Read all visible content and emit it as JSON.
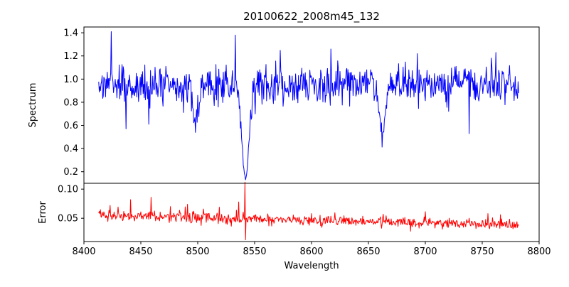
{
  "figure": {
    "background": "#ffffff"
  },
  "chart_data": {
    "type": "line",
    "title": "20100622_2008m45_132",
    "xlabel": "Wavelength",
    "x_axis": {
      "lim": [
        8400,
        8800
      ],
      "tick_values": [
        8400,
        8450,
        8500,
        8550,
        8600,
        8650,
        8700,
        8750,
        8800
      ],
      "tick_labels": [
        "8400",
        "8450",
        "8500",
        "8550",
        "8600",
        "8650",
        "8700",
        "8750",
        "8800"
      ]
    },
    "x_data_range": [
      8413,
      8782
    ],
    "x_step": 0.5,
    "panels": [
      {
        "name": "spectrum",
        "ylabel": "Spectrum",
        "color": "#0000ff",
        "ylim": [
          0.1,
          1.45
        ],
        "tick_values": [
          0.2,
          0.4,
          0.6,
          0.8,
          1.0,
          1.2,
          1.4
        ],
        "tick_labels": [
          "0.2",
          "0.4",
          "0.6",
          "0.8",
          "1.0",
          "1.2",
          "1.4"
        ],
        "baseline": 0.95,
        "noise_sigma": 0.085,
        "absorption_lines": [
          {
            "center": 8498,
            "depth": 0.33,
            "width": 2.5
          },
          {
            "center": 8542,
            "depth": 0.85,
            "width": 3.2
          },
          {
            "center": 8662,
            "depth": 0.45,
            "width": 2.3
          }
        ],
        "feature_points": [
          {
            "x": 8424,
            "y": 1.41
          },
          {
            "x": 8437,
            "y": 0.57
          },
          {
            "x": 8457,
            "y": 0.61
          },
          {
            "x": 8533,
            "y": 1.38
          },
          {
            "x": 8617,
            "y": 1.26
          },
          {
            "x": 8693,
            "y": 1.22
          },
          {
            "x": 8762,
            "y": 1.23
          }
        ],
        "y_min_observed": 0.15,
        "y_max_observed": 1.41
      },
      {
        "name": "error",
        "ylabel": "Error",
        "color": "#ff0000",
        "ylim": [
          0.01,
          0.11
        ],
        "tick_values": [
          0.05,
          0.1
        ],
        "tick_labels": [
          "0.05",
          "0.10"
        ],
        "baseline_start": 0.055,
        "baseline_end": 0.038,
        "noise_sigma": 0.0045,
        "spike": {
          "center": 8542,
          "max": 0.112,
          "min": 0.013
        },
        "feature_points": [
          {
            "x": 8423,
            "y": 0.072
          },
          {
            "x": 8441,
            "y": 0.082
          },
          {
            "x": 8459,
            "y": 0.086
          },
          {
            "x": 8476,
            "y": 0.07
          },
          {
            "x": 8491,
            "y": 0.074
          },
          {
            "x": 8505,
            "y": 0.066
          },
          {
            "x": 8519,
            "y": 0.069
          },
          {
            "x": 8536,
            "y": 0.078
          },
          {
            "x": 8600,
            "y": 0.058
          },
          {
            "x": 8755,
            "y": 0.058
          },
          {
            "x": 8766,
            "y": 0.056
          }
        ]
      }
    ],
    "legend": "none",
    "grid": false
  }
}
